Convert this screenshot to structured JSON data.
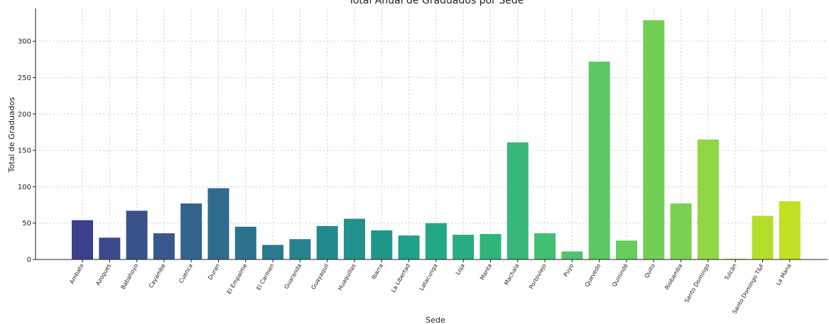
{
  "chart_data": {
    "type": "bar",
    "title": "Total Anual de Graduados por Sede",
    "xlabel": "Sede",
    "ylabel": "Total de Graduados",
    "ylim": [
      0,
      345
    ],
    "yticks": [
      0,
      50,
      100,
      150,
      200,
      250,
      300
    ],
    "grid": true,
    "categories": [
      "Ambato",
      "Azogues",
      "Babahoyo",
      "Cayambe",
      "Cuenca",
      "Duran",
      "El Empalme",
      "El Carmen",
      "Guaranda",
      "Guayaquil",
      "Huaquillas",
      "Ibarra",
      "La Libertad",
      "Latacunga",
      "Loja",
      "Manta",
      "Machala",
      "Portoviejo",
      "Puyo",
      "Quevedo",
      "Quinindé",
      "Quito",
      "Riobamba",
      "Santo Domingo",
      "Tulcán",
      "Santo Domingo T&F",
      "La Mana"
    ],
    "values": [
      54,
      30,
      67,
      36,
      77,
      98,
      45,
      20,
      28,
      46,
      56,
      40,
      33,
      50,
      34,
      35,
      161,
      36,
      11,
      272,
      26,
      329,
      77,
      165,
      1,
      60,
      80
    ],
    "colors": [
      "#3b3f8c",
      "#3c4a8d",
      "#3a528b",
      "#38598c",
      "#33638d",
      "#2f6b8e",
      "#2c728e",
      "#297a8e",
      "#26828e",
      "#23898e",
      "#21918c",
      "#1f988b",
      "#1fa088",
      "#22a884",
      "#26ad81",
      "#2fb47c",
      "#35b779",
      "#42be71",
      "#4ec36b",
      "#5cc863",
      "#67cc5c",
      "#72cf56",
      "#7ad151",
      "#8fd744",
      "#a2da37",
      "#b5de2b",
      "#c2df23"
    ]
  }
}
